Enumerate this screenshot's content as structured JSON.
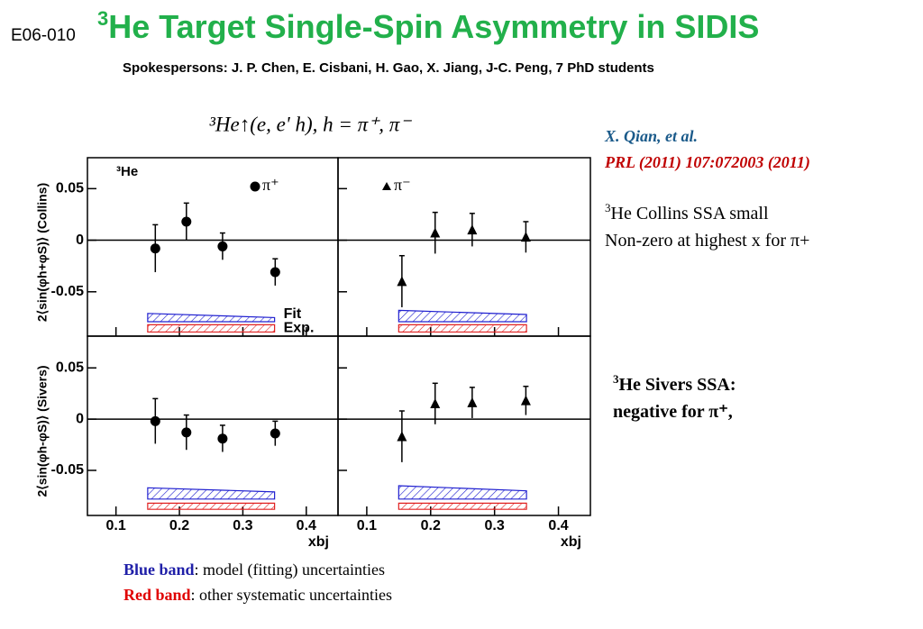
{
  "header": {
    "code": "E06-010",
    "title_sup": "3",
    "title": "He Target Single-Spin Asymmetry in SIDIS",
    "subtitle": "Spokespersons: J. P. Chen, E. Cisbani, H. Gao, X. Jiang, J-C. Peng, 7 PhD students"
  },
  "formula": "³He↑(e, e' h),   h = π⁺, π⁻",
  "reference": {
    "authors": "X. Qian,  et al.",
    "journal": "PRL (2011) 107:072003 (2011)"
  },
  "notes": [
    {
      "sup": "3",
      "text": "He Collins SSA small"
    },
    {
      "sup": "",
      "text": "Non-zero at highest x for π+"
    },
    {
      "sup": "3",
      "text": "He Sivers SSA:"
    },
    {
      "sup": "",
      "text": "negative for π⁺,"
    }
  ],
  "footer": [
    {
      "key": "Blue band",
      "color": "#1f1fa8",
      "text": ": model (fitting) uncertainties"
    },
    {
      "key": "Red band",
      "color": "#e00000",
      "text": ": other systematic uncertainties"
    }
  ],
  "chart_data": [
    {
      "type": "scatter",
      "marker": "circle",
      "name": "π⁺",
      "target_label": "³He",
      "ylabel": "2⟨sin(φh+φS)⟩ (Collins)",
      "x": [
        0.162,
        0.211,
        0.268,
        0.351
      ],
      "values": [
        -0.008,
        0.018,
        -0.006,
        -0.031
      ],
      "errors": [
        0.023,
        0.018,
        0.013,
        0.013
      ],
      "xlim": [
        0.055,
        0.45
      ],
      "ylim": [
        -0.093,
        0.08
      ],
      "xticks": [
        0.1,
        0.2,
        0.3,
        0.4
      ],
      "yticks": [
        0.05,
        0,
        -0.05
      ],
      "xtick_labels": false,
      "ytick_labels": true,
      "zero_line": true,
      "bands": [
        {
          "name": "Fit",
          "color": "#2020d0",
          "x": [
            0.15,
            0.35
          ],
          "upper": [
            -0.071,
            -0.075
          ],
          "lower": [
            -0.079,
            -0.079
          ]
        },
        {
          "name": "Exp.",
          "color": "#e02020",
          "x": [
            0.15,
            0.35
          ],
          "upper": [
            -0.082,
            -0.082
          ],
          "lower": [
            -0.089,
            -0.089
          ]
        }
      ]
    },
    {
      "type": "scatter",
      "marker": "triangle",
      "name": "π⁻",
      "x": [
        0.155,
        0.207,
        0.265,
        0.349
      ],
      "values": [
        -0.04,
        0.007,
        0.01,
        0.003
      ],
      "errors": [
        0.025,
        0.02,
        0.016,
        0.015
      ],
      "xlim": [
        0.055,
        0.45
      ],
      "ylim": [
        -0.093,
        0.08
      ],
      "xticks": [
        0.1,
        0.2,
        0.3,
        0.4
      ],
      "yticks": [
        0.05,
        0,
        -0.05
      ],
      "xtick_labels": false,
      "ytick_labels": false,
      "zero_line": true,
      "bands": [
        {
          "color": "#2020d0",
          "x": [
            0.15,
            0.35
          ],
          "upper": [
            -0.068,
            -0.072
          ],
          "lower": [
            -0.079,
            -0.079
          ]
        },
        {
          "color": "#e02020",
          "x": [
            0.15,
            0.35
          ],
          "upper": [
            -0.082,
            -0.082
          ],
          "lower": [
            -0.089,
            -0.089
          ]
        }
      ]
    },
    {
      "type": "scatter",
      "marker": "circle",
      "ylabel": "2⟨sin(φh-φS)⟩ (Sivers)",
      "xlabel": "xbj",
      "x": [
        0.162,
        0.211,
        0.268,
        0.351
      ],
      "values": [
        -0.002,
        -0.013,
        -0.019,
        -0.014
      ],
      "errors": [
        0.022,
        0.017,
        0.013,
        0.012
      ],
      "xlim": [
        0.055,
        0.45
      ],
      "ylim": [
        -0.094,
        0.081
      ],
      "xticks": [
        0.1,
        0.2,
        0.3,
        0.4
      ],
      "yticks": [
        0.05,
        0,
        -0.05
      ],
      "xtick_labels": true,
      "ytick_labels": true,
      "zero_line": true,
      "bands": [
        {
          "color": "#2020d0",
          "x": [
            0.15,
            0.35
          ],
          "upper": [
            -0.067,
            -0.071
          ],
          "lower": [
            -0.078,
            -0.078
          ]
        },
        {
          "color": "#e02020",
          "x": [
            0.15,
            0.35
          ],
          "upper": [
            -0.082,
            -0.082
          ],
          "lower": [
            -0.088,
            -0.088
          ]
        }
      ]
    },
    {
      "type": "scatter",
      "marker": "triangle",
      "xlabel": "xbj",
      "x": [
        0.155,
        0.207,
        0.265,
        0.349
      ],
      "values": [
        -0.017,
        0.015,
        0.016,
        0.018
      ],
      "errors": [
        0.025,
        0.02,
        0.015,
        0.014
      ],
      "xlim": [
        0.055,
        0.45
      ],
      "ylim": [
        -0.094,
        0.081
      ],
      "xticks": [
        0.1,
        0.2,
        0.3,
        0.4
      ],
      "yticks": [
        0.05,
        0,
        -0.05
      ],
      "xtick_labels": true,
      "ytick_labels": false,
      "zero_line": true,
      "bands": [
        {
          "color": "#2020d0",
          "x": [
            0.15,
            0.35
          ],
          "upper": [
            -0.065,
            -0.07
          ],
          "lower": [
            -0.078,
            -0.078
          ]
        },
        {
          "color": "#e02020",
          "x": [
            0.15,
            0.35
          ],
          "upper": [
            -0.082,
            -0.082
          ],
          "lower": [
            -0.088,
            -0.088
          ]
        }
      ]
    }
  ]
}
